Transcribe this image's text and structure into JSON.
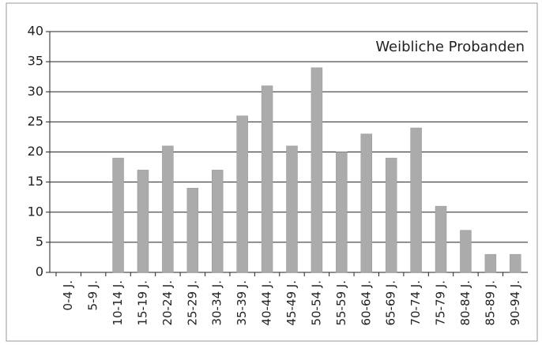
{
  "chart_data": {
    "type": "bar",
    "annotation": "Weibliche Probanden",
    "categories": [
      "0-4 J.",
      "5-9 J.",
      "10-14 J.",
      "15-19 J.",
      "20-24 J.",
      "25-29 J.",
      "30-34 J.",
      "35-39 J.",
      "40-44 J.",
      "45-49 J.",
      "50-54 J.",
      "55-59 J.",
      "60-64 J.",
      "65-69 J.",
      "70-74 J.",
      "75-79 J.",
      "80-84 J.",
      "85-89 J.",
      "90-94 J."
    ],
    "values": [
      0,
      0,
      19,
      17,
      21,
      14,
      17,
      26,
      31,
      21,
      34,
      20,
      23,
      19,
      24,
      11,
      7,
      3,
      3
    ],
    "color": "#ababab",
    "ylim": [
      0,
      40
    ],
    "yticks": [
      0,
      5,
      10,
      15,
      20,
      25,
      30,
      35,
      40
    ],
    "grid": true
  }
}
